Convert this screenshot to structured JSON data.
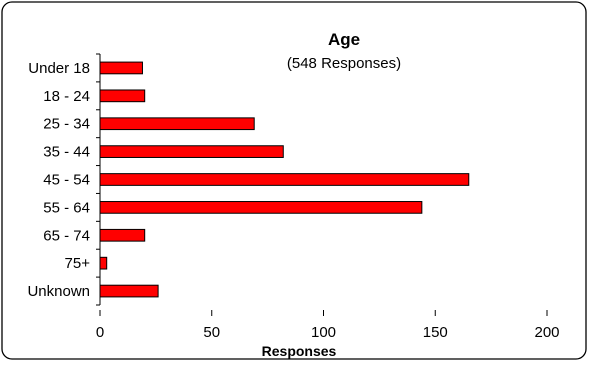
{
  "chart_data": {
    "type": "bar",
    "orientation": "horizontal",
    "title": "Age",
    "subtitle": "(548 Responses)",
    "xlabel": "Responses",
    "ylabel": "",
    "categories": [
      "Under 18",
      "18 - 24",
      "25 - 34",
      "35 - 44",
      "45 - 54",
      "55 - 64",
      "65 - 74",
      "75+",
      "Unknown"
    ],
    "values": [
      19,
      20,
      69,
      82,
      165,
      144,
      20,
      3,
      26
    ],
    "xlim": [
      0,
      200
    ],
    "xticks": [
      0,
      50,
      100,
      150,
      200
    ],
    "grid": false,
    "legend": "none",
    "colors": {
      "bar_fill": "#ff0000",
      "bar_stroke": "#000000",
      "frame": "#000000",
      "background": "#ffffff"
    }
  }
}
